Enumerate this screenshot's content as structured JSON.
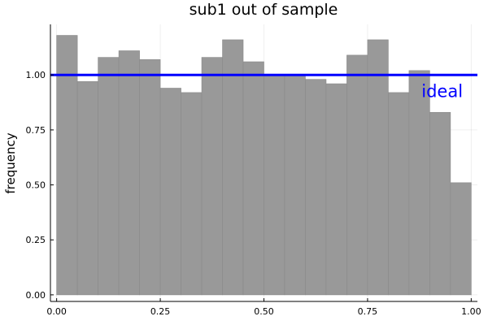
{
  "chart_data": {
    "type": "bar",
    "title": "sub1 out of sample",
    "xlabel": "",
    "ylabel": "frequency",
    "bin_edges": [
      0.0,
      0.05,
      0.1,
      0.15,
      0.2,
      0.25,
      0.3,
      0.35,
      0.4,
      0.45,
      0.5,
      0.55,
      0.6,
      0.65,
      0.7,
      0.75,
      0.8,
      0.85,
      0.9,
      0.95,
      1.0
    ],
    "values": [
      1.18,
      0.97,
      1.08,
      1.11,
      1.07,
      0.94,
      0.92,
      1.08,
      1.16,
      1.06,
      1.0,
      1.0,
      0.98,
      0.96,
      1.09,
      1.16,
      0.92,
      1.02,
      0.83,
      0.51
    ],
    "xlim": [
      -0.015,
      1.015
    ],
    "ylim": [
      -0.03,
      1.23
    ],
    "xticks": [
      0.0,
      0.25,
      0.5,
      0.75,
      1.0
    ],
    "xtick_labels": [
      "0.00",
      "0.25",
      "0.50",
      "0.75",
      "1.00"
    ],
    "yticks": [
      0.0,
      0.25,
      0.5,
      0.75,
      1.0
    ],
    "ytick_labels": [
      "0.00",
      "0.25",
      "0.50",
      "0.75",
      "1.00"
    ],
    "reference_line": {
      "y": 1.0,
      "color": "#0000ff"
    },
    "annotation": {
      "text": "ideal",
      "x": 0.93,
      "y": 0.925,
      "color": "#0000ff"
    },
    "bar_color": "#999999",
    "bar_edge_color": "#8a8a8a",
    "grid": true,
    "legend": "none"
  }
}
